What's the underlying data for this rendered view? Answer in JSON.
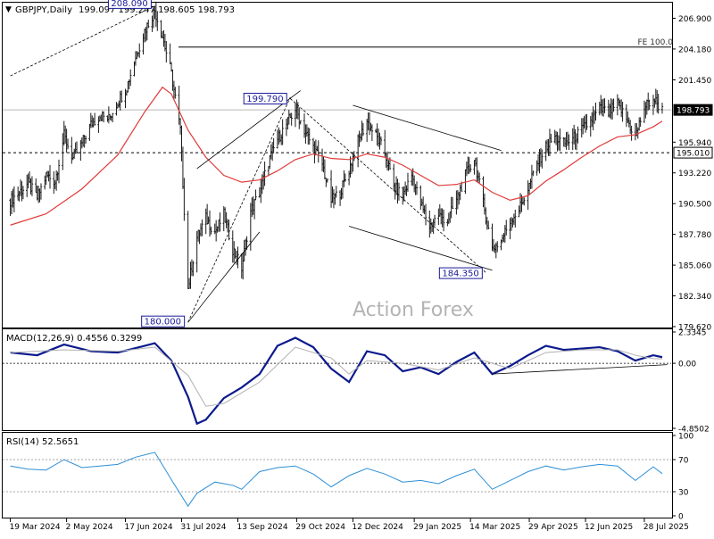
{
  "header": {
    "title": "GBPJPY,Daily",
    "ohlc": "199.097 199.247 198.605 198.793"
  },
  "watermark": "Action Forex",
  "colors": {
    "price_bars": "#1a1a1a",
    "ma": "#e03a3a",
    "macd_main": "#0c1a8c",
    "macd_signal": "#b0b0b0",
    "rsi": "#2c8fd6",
    "levels": "#000000"
  },
  "chart_data": [
    {
      "type": "ohlc",
      "panel": "price",
      "ylim": [
        179.62,
        208.2
      ],
      "y_ticks": [
        "206.900",
        "204.180",
        "201.450",
        "198.793",
        "195.940",
        "195.010",
        "193.220",
        "190.500",
        "187.780",
        "185.060",
        "182.340",
        "179.620"
      ],
      "y_tick_values": [
        206.9,
        204.18,
        201.45,
        198.793,
        195.94,
        195.01,
        193.22,
        190.5,
        187.78,
        185.06,
        182.34,
        179.62
      ],
      "x_ticks": [
        "19 Mar 2024",
        "2 May 2024",
        "17 Jun 2024",
        "31 Jul 2024",
        "13 Sep 2024",
        "29 Oct 2024",
        "12 Dec 2024",
        "29 Jan 2025",
        "14 Mar 2025",
        "29 Apr 2025",
        "12 Jun 2025",
        "28 Jul 2025"
      ],
      "current_price": 198.793,
      "labels": [
        {
          "text": "208.090",
          "value": 208.09,
          "x": "2024-07-10"
        },
        {
          "text": "199.790",
          "value": 199.79,
          "x": "2024-10-24"
        },
        {
          "text": "180.000",
          "value": 180.0,
          "x": "2024-08-05"
        },
        {
          "text": "184.350",
          "value": 184.35,
          "x": "2025-03-26"
        }
      ],
      "levels": [
        {
          "text": "FE 100.0",
          "value": 204.35,
          "style": "solid"
        },
        {
          "text": "195.010",
          "value": 195.01,
          "style": "dashed"
        },
        {
          "text": "",
          "value": 198.793,
          "style": "solid-gray"
        }
      ],
      "series_close": [
        [
          "2024-03-19",
          190.8
        ],
        [
          "2024-03-26",
          191.5
        ],
        [
          "2024-04-02",
          192.3
        ],
        [
          "2024-04-09",
          191.0
        ],
        [
          "2024-04-16",
          193.0
        ],
        [
          "2024-04-23",
          192.5
        ],
        [
          "2024-04-30",
          196.5
        ],
        [
          "2024-05-07",
          194.5
        ],
        [
          "2024-05-14",
          195.8
        ],
        [
          "2024-05-21",
          197.5
        ],
        [
          "2024-05-28",
          198.3
        ],
        [
          "2024-06-04",
          198.0
        ],
        [
          "2024-06-11",
          199.5
        ],
        [
          "2024-06-18",
          200.8
        ],
        [
          "2024-06-25",
          203.5
        ],
        [
          "2024-07-02",
          205.8
        ],
        [
          "2024-07-10",
          207.6
        ],
        [
          "2024-07-16",
          205.3
        ],
        [
          "2024-07-23",
          202.0
        ],
        [
          "2024-07-30",
          197.0
        ],
        [
          "2024-08-05",
          183.0
        ],
        [
          "2024-08-12",
          187.5
        ],
        [
          "2024-08-19",
          189.2
        ],
        [
          "2024-08-26",
          188.0
        ],
        [
          "2024-09-02",
          189.5
        ],
        [
          "2024-09-09",
          186.5
        ],
        [
          "2024-09-16",
          184.8
        ],
        [
          "2024-09-23",
          189.8
        ],
        [
          "2024-09-30",
          191.5
        ],
        [
          "2024-10-07",
          194.2
        ],
        [
          "2024-10-14",
          196.2
        ],
        [
          "2024-10-21",
          197.5
        ],
        [
          "2024-10-28",
          198.9
        ],
        [
          "2024-11-04",
          197.0
        ],
        [
          "2024-11-11",
          195.5
        ],
        [
          "2024-11-18",
          194.0
        ],
        [
          "2024-11-25",
          190.8
        ],
        [
          "2024-12-02",
          191.5
        ],
        [
          "2024-12-09",
          193.5
        ],
        [
          "2024-12-16",
          196.0
        ],
        [
          "2024-12-23",
          197.8
        ],
        [
          "2024-12-30",
          196.5
        ],
        [
          "2025-01-06",
          195.0
        ],
        [
          "2025-01-13",
          192.0
        ],
        [
          "2025-01-20",
          191.2
        ],
        [
          "2025-01-27",
          193.0
        ],
        [
          "2025-02-03",
          190.5
        ],
        [
          "2025-02-10",
          188.5
        ],
        [
          "2025-02-17",
          189.5
        ],
        [
          "2025-02-24",
          189.0
        ],
        [
          "2025-03-03",
          190.8
        ],
        [
          "2025-03-10",
          193.0
        ],
        [
          "2025-03-17",
          194.5
        ],
        [
          "2025-03-24",
          190.5
        ],
        [
          "2025-03-31",
          186.5
        ],
        [
          "2025-04-07",
          187.2
        ],
        [
          "2025-04-14",
          189.0
        ],
        [
          "2025-04-21",
          190.0
        ],
        [
          "2025-04-28",
          191.8
        ],
        [
          "2025-05-05",
          194.0
        ],
        [
          "2025-05-12",
          195.5
        ],
        [
          "2025-05-19",
          196.4
        ],
        [
          "2025-05-26",
          195.8
        ],
        [
          "2025-06-02",
          196.2
        ],
        [
          "2025-06-09",
          197.0
        ],
        [
          "2025-06-16",
          197.8
        ],
        [
          "2025-06-23",
          198.9
        ],
        [
          "2025-06-30",
          198.5
        ],
        [
          "2025-07-07",
          199.3
        ],
        [
          "2025-07-14",
          198.0
        ],
        [
          "2025-07-21",
          196.4
        ],
        [
          "2025-07-28",
          199.0
        ],
        [
          "2025-08-04",
          199.8
        ],
        [
          "2025-08-11",
          198.793
        ]
      ],
      "ma_series": [
        [
          "2024-03-19",
          188.6
        ],
        [
          "2024-04-16",
          189.6
        ],
        [
          "2024-05-14",
          191.8
        ],
        [
          "2024-06-11",
          194.8
        ],
        [
          "2024-07-02",
          198.6
        ],
        [
          "2024-07-16",
          200.8
        ],
        [
          "2024-07-23",
          200.2
        ],
        [
          "2024-08-05",
          197.0
        ],
        [
          "2024-08-19",
          194.6
        ],
        [
          "2024-09-02",
          193.0
        ],
        [
          "2024-09-16",
          192.4
        ],
        [
          "2024-09-30",
          192.6
        ],
        [
          "2024-10-14",
          193.4
        ],
        [
          "2024-10-28",
          194.4
        ],
        [
          "2024-11-11",
          194.9
        ],
        [
          "2024-11-25",
          194.5
        ],
        [
          "2024-12-09",
          194.4
        ],
        [
          "2024-12-23",
          194.9
        ],
        [
          "2025-01-06",
          194.6
        ],
        [
          "2025-01-20",
          193.9
        ],
        [
          "2025-02-03",
          193.0
        ],
        [
          "2025-02-17",
          192.1
        ],
        [
          "2025-03-03",
          192.2
        ],
        [
          "2025-03-17",
          192.6
        ],
        [
          "2025-03-31",
          191.5
        ],
        [
          "2025-04-14",
          190.8
        ],
        [
          "2025-04-28",
          191.2
        ],
        [
          "2025-05-12",
          192.5
        ],
        [
          "2025-05-26",
          193.5
        ],
        [
          "2025-06-09",
          194.6
        ],
        [
          "2025-06-23",
          195.6
        ],
        [
          "2025-07-07",
          196.4
        ],
        [
          "2025-07-21",
          196.6
        ],
        [
          "2025-08-04",
          197.3
        ],
        [
          "2025-08-11",
          197.8
        ]
      ],
      "trendlines": [
        {
          "style": "dashed",
          "points": [
            [
              "2024-03-19",
              201.8
            ],
            [
              "2024-07-10",
              208.0
            ]
          ]
        },
        {
          "style": "solid",
          "points": [
            [
              "2024-08-05",
              180.0
            ],
            [
              "2024-09-30",
              188.0
            ]
          ]
        },
        {
          "style": "solid",
          "points": [
            [
              "2024-08-12",
              193.6
            ],
            [
              "2024-11-01",
              200.5
            ]
          ]
        },
        {
          "style": "dashed",
          "points": [
            [
              "2024-08-05",
              180.0
            ],
            [
              "2024-10-24",
              199.9
            ]
          ]
        },
        {
          "style": "dashed",
          "points": [
            [
              "2024-10-24",
              199.8
            ],
            [
              "2025-03-26",
              184.4
            ]
          ]
        },
        {
          "style": "solid",
          "points": [
            [
              "2024-12-12",
              199.2
            ],
            [
              "2025-04-07",
              195.2
            ]
          ]
        },
        {
          "style": "solid",
          "points": [
            [
              "2024-12-09",
              188.5
            ],
            [
              "2025-03-31",
              184.6
            ]
          ]
        }
      ]
    },
    {
      "type": "line",
      "panel": "macd",
      "title": "MACD(12,26,9) 0.4556 0.3299",
      "ylim": [
        -4.85,
        2.3345
      ],
      "y_ticks": [
        "2.3345",
        "0.00",
        "-4.8502"
      ],
      "y_tick_values": [
        2.3345,
        0.0,
        -4.8502
      ],
      "series": [
        {
          "name": "main",
          "points": [
            [
              "2024-03-19",
              0.8
            ],
            [
              "2024-04-09",
              0.6
            ],
            [
              "2024-04-30",
              1.4
            ],
            [
              "2024-05-21",
              0.9
            ],
            [
              "2024-06-11",
              0.8
            ],
            [
              "2024-07-02",
              1.3
            ],
            [
              "2024-07-10",
              1.5
            ],
            [
              "2024-07-23",
              0.2
            ],
            [
              "2024-08-05",
              -2.5
            ],
            [
              "2024-08-12",
              -4.5
            ],
            [
              "2024-08-19",
              -4.2
            ],
            [
              "2024-09-02",
              -2.6
            ],
            [
              "2024-09-16",
              -1.8
            ],
            [
              "2024-09-30",
              -0.8
            ],
            [
              "2024-10-14",
              1.3
            ],
            [
              "2024-10-28",
              1.9
            ],
            [
              "2024-11-11",
              1.2
            ],
            [
              "2024-11-25",
              -0.4
            ],
            [
              "2024-12-09",
              -1.4
            ],
            [
              "2024-12-23",
              0.9
            ],
            [
              "2025-01-06",
              0.6
            ],
            [
              "2025-01-20",
              -0.6
            ],
            [
              "2025-02-03",
              -0.3
            ],
            [
              "2025-02-17",
              -0.8
            ],
            [
              "2025-03-03",
              0.1
            ],
            [
              "2025-03-17",
              0.8
            ],
            [
              "2025-03-31",
              -0.8
            ],
            [
              "2025-04-14",
              -0.2
            ],
            [
              "2025-04-28",
              0.6
            ],
            [
              "2025-05-12",
              1.3
            ],
            [
              "2025-05-26",
              1.0
            ],
            [
              "2025-06-09",
              1.1
            ],
            [
              "2025-06-23",
              1.2
            ],
            [
              "2025-07-07",
              0.9
            ],
            [
              "2025-07-21",
              0.2
            ],
            [
              "2025-08-04",
              0.6
            ],
            [
              "2025-08-11",
              0.4556
            ]
          ]
        },
        {
          "name": "signal",
          "points": [
            [
              "2024-03-19",
              0.8
            ],
            [
              "2024-04-30",
              1.0
            ],
            [
              "2024-06-11",
              0.9
            ],
            [
              "2024-07-10",
              1.2
            ],
            [
              "2024-08-05",
              -0.9
            ],
            [
              "2024-08-19",
              -3.2
            ],
            [
              "2024-09-02",
              -3.0
            ],
            [
              "2024-09-30",
              -1.4
            ],
            [
              "2024-10-28",
              1.2
            ],
            [
              "2024-11-25",
              0.4
            ],
            [
              "2024-12-09",
              -0.8
            ],
            [
              "2024-12-23",
              0.2
            ],
            [
              "2025-01-20",
              0.0
            ],
            [
              "2025-02-17",
              -0.5
            ],
            [
              "2025-03-17",
              0.4
            ],
            [
              "2025-03-31",
              0.0
            ],
            [
              "2025-04-14",
              -0.4
            ],
            [
              "2025-05-12",
              0.8
            ],
            [
              "2025-06-09",
              1.0
            ],
            [
              "2025-07-07",
              1.0
            ],
            [
              "2025-07-21",
              0.6
            ],
            [
              "2025-08-04",
              0.35
            ],
            [
              "2025-08-11",
              0.3299
            ]
          ]
        }
      ],
      "trendlines": [
        {
          "style": "solid",
          "points": [
            [
              "2025-03-31",
              -0.8
            ],
            [
              "2025-08-15",
              -0.1
            ]
          ]
        }
      ]
    },
    {
      "type": "line",
      "panel": "rsi",
      "title": "RSI(14) 52.5651",
      "ylim": [
        0,
        100
      ],
      "y_ticks": [
        "100",
        "70",
        "30",
        "0"
      ],
      "y_tick_values": [
        100,
        70,
        30,
        0
      ],
      "series": [
        {
          "name": "rsi",
          "points": [
            [
              "2024-03-19",
              62
            ],
            [
              "2024-04-02",
              58
            ],
            [
              "2024-04-16",
              57
            ],
            [
              "2024-04-30",
              70
            ],
            [
              "2024-05-14",
              60
            ],
            [
              "2024-05-28",
              62
            ],
            [
              "2024-06-11",
              64
            ],
            [
              "2024-06-25",
              73
            ],
            [
              "2024-07-10",
              79
            ],
            [
              "2024-07-23",
              45
            ],
            [
              "2024-08-05",
              12
            ],
            [
              "2024-08-12",
              28
            ],
            [
              "2024-08-26",
              42
            ],
            [
              "2024-09-09",
              38
            ],
            [
              "2024-09-16",
              33
            ],
            [
              "2024-09-30",
              55
            ],
            [
              "2024-10-14",
              60
            ],
            [
              "2024-10-28",
              62
            ],
            [
              "2024-11-11",
              52
            ],
            [
              "2024-11-25",
              36
            ],
            [
              "2024-12-09",
              50
            ],
            [
              "2024-12-23",
              59
            ],
            [
              "2025-01-06",
              52
            ],
            [
              "2025-01-20",
              42
            ],
            [
              "2025-02-03",
              44
            ],
            [
              "2025-02-17",
              40
            ],
            [
              "2025-03-03",
              50
            ],
            [
              "2025-03-17",
              58
            ],
            [
              "2025-03-31",
              33
            ],
            [
              "2025-04-14",
              44
            ],
            [
              "2025-04-28",
              55
            ],
            [
              "2025-05-12",
              62
            ],
            [
              "2025-05-26",
              57
            ],
            [
              "2025-06-09",
              61
            ],
            [
              "2025-06-23",
              64
            ],
            [
              "2025-07-07",
              62
            ],
            [
              "2025-07-21",
              44
            ],
            [
              "2025-08-04",
              61
            ],
            [
              "2025-08-11",
              52.5651
            ]
          ]
        }
      ]
    }
  ]
}
